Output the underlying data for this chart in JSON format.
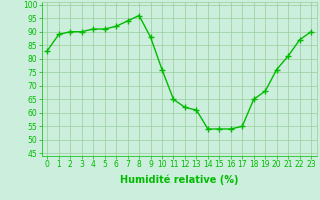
{
  "x": [
    0,
    1,
    2,
    3,
    4,
    5,
    6,
    7,
    8,
    9,
    10,
    11,
    12,
    13,
    14,
    15,
    16,
    17,
    18,
    19,
    20,
    21,
    22,
    23
  ],
  "y": [
    83,
    89,
    90,
    90,
    91,
    91,
    92,
    94,
    96,
    88,
    76,
    65,
    62,
    61,
    54,
    54,
    54,
    55,
    65,
    68,
    76,
    81,
    87,
    90
  ],
  "line_color": "#00bb00",
  "marker": "+",
  "marker_size": 4,
  "linewidth": 1.0,
  "xlabel": "Humidité relative (%)",
  "xlabel_color": "#00bb00",
  "xlabel_fontsize": 7,
  "ylabel_ticks": [
    45,
    50,
    55,
    60,
    65,
    70,
    75,
    80,
    85,
    90,
    95,
    100
  ],
  "xlim": [
    -0.5,
    23.5
  ],
  "ylim": [
    44,
    101
  ],
  "bg_color": "#cceedd",
  "grid_color": "#99cc99",
  "tick_color": "#00bb00",
  "tick_fontsize": 5.5,
  "figure_bg": "#cceedd"
}
